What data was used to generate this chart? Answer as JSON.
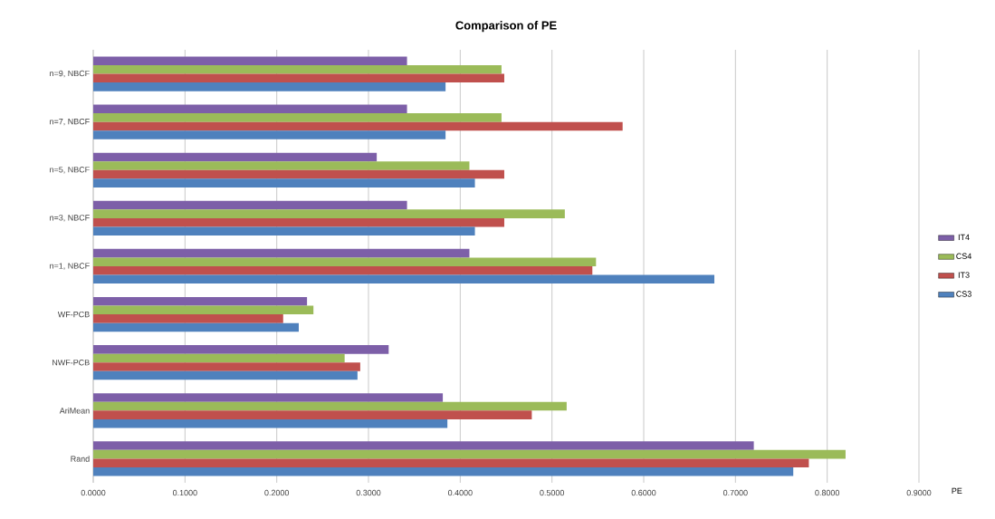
{
  "chart_data": {
    "type": "bar",
    "orientation": "horizontal",
    "title": "Comparison of PE",
    "xlabel": "PE",
    "categories": [
      "n=9, NBCF",
      "n=7, NBCF",
      "n=5, NBCF",
      "n=3, NBCF",
      "n=1, NBCF",
      "WF-PCB",
      "NWF-PCB",
      "AriMean",
      "Rand"
    ],
    "series": [
      {
        "name": "IT4",
        "color": "#7d5fa8",
        "values": [
          0.342,
          0.342,
          0.309,
          0.342,
          0.41,
          0.233,
          0.322,
          0.381,
          0.72
        ]
      },
      {
        "name": "CS4",
        "color": "#9bbb59",
        "values": [
          0.445,
          0.445,
          0.41,
          0.514,
          0.548,
          0.24,
          0.274,
          0.516,
          0.82
        ]
      },
      {
        "name": "IT3",
        "color": "#c0504d",
        "values": [
          0.448,
          0.577,
          0.448,
          0.448,
          0.544,
          0.207,
          0.291,
          0.478,
          0.78
        ]
      },
      {
        "name": "CS3",
        "color": "#4f81bd",
        "values": [
          0.384,
          0.384,
          0.416,
          0.416,
          0.677,
          0.224,
          0.288,
          0.386,
          0.763
        ]
      }
    ],
    "xlim": [
      0,
      0.9
    ],
    "xticks": [
      {
        "value": 0,
        "label": "0.0000"
      },
      {
        "value": 0.1,
        "label": "0.1000"
      },
      {
        "value": 0.2,
        "label": "0.2000"
      },
      {
        "value": 0.3,
        "label": "0.3000"
      },
      {
        "value": 0.4,
        "label": "0.4000"
      },
      {
        "value": 0.5,
        "label": "0.5000"
      },
      {
        "value": 0.6,
        "label": "0.6000"
      },
      {
        "value": 0.7,
        "label": "0.7000"
      },
      {
        "value": 0.8,
        "label": "0.8000"
      },
      {
        "value": 0.9,
        "label": "0.9000"
      }
    ],
    "grid": "x",
    "legend": "right"
  }
}
